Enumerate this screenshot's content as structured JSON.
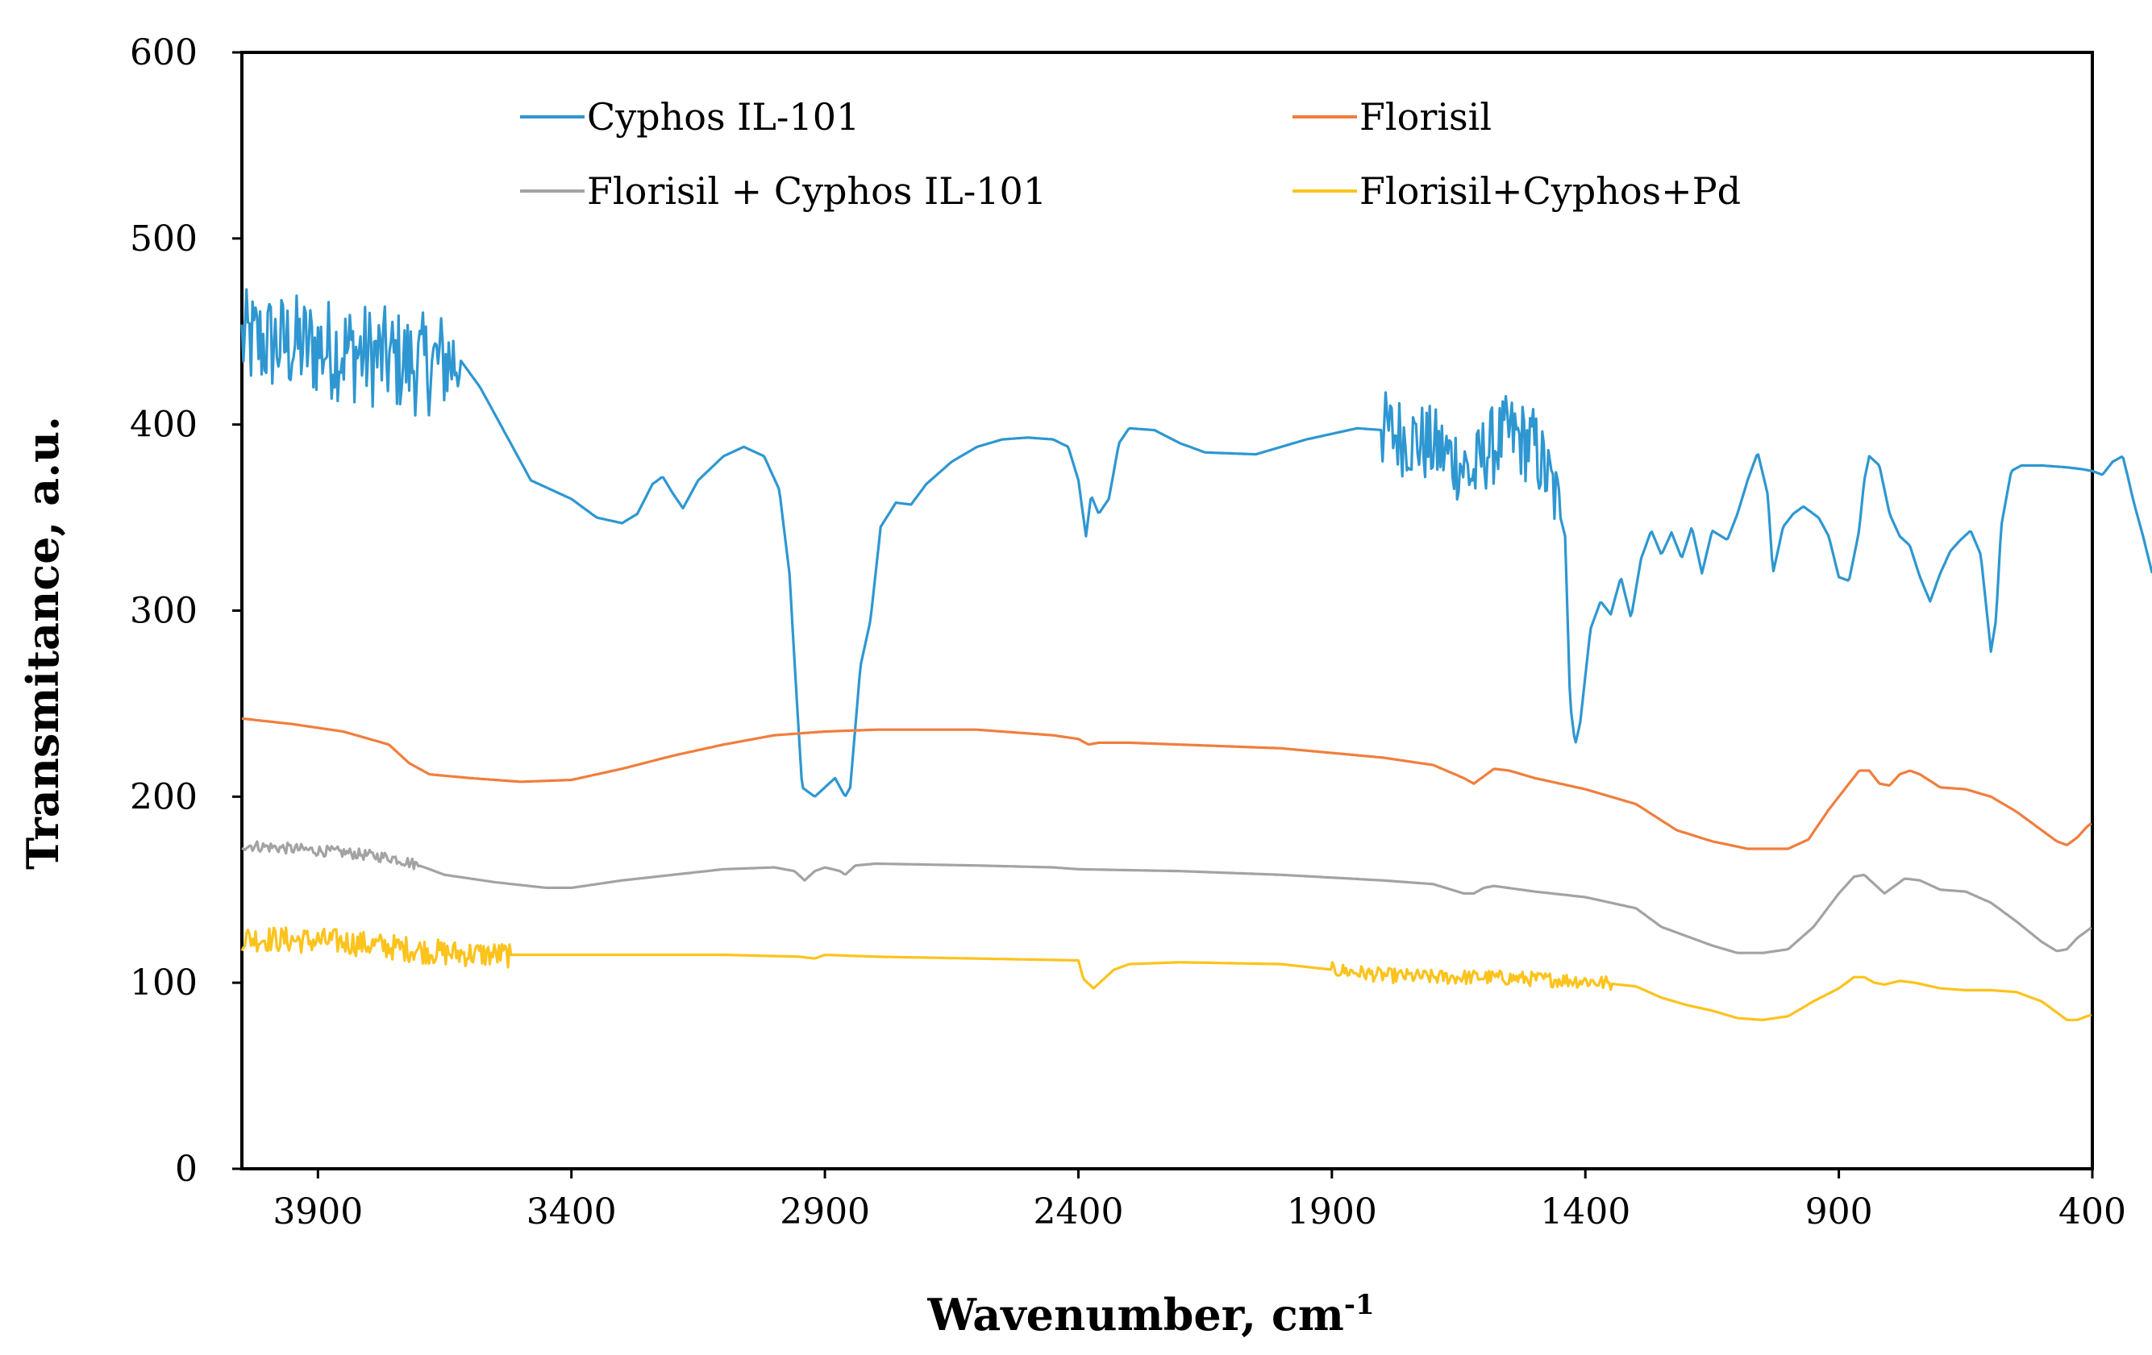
{
  "chart_data": {
    "type": "line",
    "title": "",
    "xlabel": "Wavenumber, cm",
    "xlabel_superscript": "-1",
    "ylabel": "Transmitance, a.u.",
    "xlim": [
      4050,
      400
    ],
    "ylim": [
      0,
      600
    ],
    "x_ticks": [
      3900,
      3400,
      2900,
      2400,
      1900,
      1400,
      900,
      400
    ],
    "x_tick_labels": [
      "3900",
      "3400",
      "2900",
      "2400",
      "1900",
      "1400",
      "900",
      "400"
    ],
    "y_ticks": [
      0,
      100,
      200,
      300,
      400,
      500,
      600
    ],
    "y_tick_labels": [
      "0",
      "100",
      "200",
      "300",
      "400",
      "500",
      "600"
    ],
    "grid": false,
    "legend_position": "top",
    "series": [
      {
        "name": "Cyphos IL-101",
        "color": "#2E97D1",
        "noise": [
          [
            4050,
            3620,
            28
          ],
          [
            1800,
            1450,
            22
          ]
        ],
        "points": [
          [
            4050,
            445
          ],
          [
            3950,
            443
          ],
          [
            3850,
            440
          ],
          [
            3700,
            432
          ],
          [
            3620,
            435
          ],
          [
            3580,
            420
          ],
          [
            3520,
            390
          ],
          [
            3480,
            370
          ],
          [
            3400,
            360
          ],
          [
            3350,
            350
          ],
          [
            3300,
            347
          ],
          [
            3270,
            352
          ],
          [
            3240,
            368
          ],
          [
            3220,
            372
          ],
          [
            3200,
            363
          ],
          [
            3180,
            355
          ],
          [
            3150,
            370
          ],
          [
            3100,
            383
          ],
          [
            3060,
            388
          ],
          [
            3020,
            383
          ],
          [
            2990,
            365
          ],
          [
            2970,
            320
          ],
          [
            2955,
            250
          ],
          [
            2945,
            205
          ],
          [
            2920,
            200
          ],
          [
            2900,
            205
          ],
          [
            2880,
            210
          ],
          [
            2860,
            200
          ],
          [
            2850,
            205
          ],
          [
            2830,
            270
          ],
          [
            2810,
            295
          ],
          [
            2790,
            345
          ],
          [
            2760,
            358
          ],
          [
            2730,
            357
          ],
          [
            2700,
            368
          ],
          [
            2650,
            380
          ],
          [
            2600,
            388
          ],
          [
            2550,
            392
          ],
          [
            2500,
            393
          ],
          [
            2450,
            392
          ],
          [
            2420,
            388
          ],
          [
            2400,
            370
          ],
          [
            2385,
            340
          ],
          [
            2375,
            362
          ],
          [
            2360,
            352
          ],
          [
            2340,
            360
          ],
          [
            2320,
            390
          ],
          [
            2300,
            398
          ],
          [
            2250,
            397
          ],
          [
            2200,
            390
          ],
          [
            2150,
            385
          ],
          [
            2050,
            384
          ],
          [
            1950,
            392
          ],
          [
            1900,
            395
          ],
          [
            1850,
            398
          ],
          [
            1800,
            397
          ],
          [
            1750,
            393
          ],
          [
            1700,
            388
          ],
          [
            1650,
            380
          ],
          [
            1620,
            372
          ],
          [
            1600,
            385
          ],
          [
            1550,
            395
          ],
          [
            1500,
            388
          ],
          [
            1460,
            362
          ],
          [
            1440,
            340
          ],
          [
            1430,
            250
          ],
          [
            1420,
            228
          ],
          [
            1410,
            240
          ],
          [
            1390,
            290
          ],
          [
            1370,
            305
          ],
          [
            1350,
            298
          ],
          [
            1330,
            318
          ],
          [
            1310,
            296
          ],
          [
            1290,
            328
          ],
          [
            1270,
            343
          ],
          [
            1250,
            330
          ],
          [
            1230,
            342
          ],
          [
            1210,
            328
          ],
          [
            1190,
            345
          ],
          [
            1170,
            320
          ],
          [
            1150,
            343
          ],
          [
            1120,
            338
          ],
          [
            1100,
            352
          ],
          [
            1080,
            370
          ],
          [
            1060,
            385
          ],
          [
            1040,
            362
          ],
          [
            1030,
            320
          ],
          [
            1010,
            345
          ],
          [
            990,
            352
          ],
          [
            970,
            356
          ],
          [
            940,
            350
          ],
          [
            920,
            340
          ],
          [
            900,
            318
          ],
          [
            880,
            316
          ],
          [
            860,
            343
          ],
          [
            850,
            370
          ],
          [
            840,
            383
          ],
          [
            820,
            378
          ],
          [
            800,
            352
          ],
          [
            780,
            340
          ],
          [
            760,
            335
          ],
          [
            740,
            318
          ],
          [
            720,
            305
          ],
          [
            700,
            320
          ],
          [
            680,
            332
          ],
          [
            660,
            338
          ],
          [
            640,
            343
          ],
          [
            620,
            330
          ],
          [
            600,
            278
          ],
          [
            590,
            295
          ],
          [
            580,
            345
          ],
          [
            560,
            375
          ],
          [
            540,
            378
          ],
          [
            500,
            378
          ],
          [
            450,
            377
          ],
          [
            420,
            376
          ],
          [
            400,
            375
          ],
          [
            380,
            373
          ],
          [
            360,
            380
          ],
          [
            340,
            383
          ],
          [
            330,
            372
          ],
          [
            320,
            360
          ],
          [
            300,
            340
          ],
          [
            280,
            318
          ]
        ]
      },
      {
        "name": "Florisil",
        "color": "#F07E3D",
        "noise": [],
        "points": [
          [
            4050,
            242
          ],
          [
            3950,
            239
          ],
          [
            3850,
            235
          ],
          [
            3760,
            228
          ],
          [
            3720,
            218
          ],
          [
            3680,
            212
          ],
          [
            3600,
            210
          ],
          [
            3500,
            208
          ],
          [
            3400,
            209
          ],
          [
            3300,
            215
          ],
          [
            3200,
            222
          ],
          [
            3100,
            228
          ],
          [
            3000,
            233
          ],
          [
            2900,
            235
          ],
          [
            2800,
            236
          ],
          [
            2600,
            236
          ],
          [
            2450,
            233
          ],
          [
            2400,
            231
          ],
          [
            2380,
            228
          ],
          [
            2360,
            229
          ],
          [
            2300,
            229
          ],
          [
            2200,
            228
          ],
          [
            2000,
            226
          ],
          [
            1800,
            221
          ],
          [
            1700,
            217
          ],
          [
            1640,
            210
          ],
          [
            1620,
            207
          ],
          [
            1600,
            211
          ],
          [
            1580,
            215
          ],
          [
            1550,
            214
          ],
          [
            1500,
            210
          ],
          [
            1400,
            204
          ],
          [
            1300,
            196
          ],
          [
            1220,
            182
          ],
          [
            1150,
            176
          ],
          [
            1080,
            172
          ],
          [
            1000,
            172
          ],
          [
            960,
            177
          ],
          [
            920,
            193
          ],
          [
            880,
            207
          ],
          [
            860,
            214
          ],
          [
            840,
            214
          ],
          [
            820,
            207
          ],
          [
            800,
            206
          ],
          [
            780,
            212
          ],
          [
            760,
            214
          ],
          [
            740,
            212
          ],
          [
            700,
            205
          ],
          [
            650,
            204
          ],
          [
            600,
            200
          ],
          [
            550,
            192
          ],
          [
            500,
            182
          ],
          [
            470,
            176
          ],
          [
            450,
            174
          ],
          [
            430,
            178
          ],
          [
            410,
            184
          ],
          [
            400,
            186
          ]
        ]
      },
      {
        "name": "Florisil + Cyphos IL-101",
        "color": "#A3A3A3",
        "noise": [
          [
            4050,
            3700,
            3
          ]
        ],
        "points": [
          [
            4050,
            174
          ],
          [
            3950,
            172
          ],
          [
            3850,
            170
          ],
          [
            3750,
            167
          ],
          [
            3700,
            163
          ],
          [
            3650,
            158
          ],
          [
            3550,
            154
          ],
          [
            3450,
            151
          ],
          [
            3400,
            151
          ],
          [
            3300,
            155
          ],
          [
            3200,
            158
          ],
          [
            3100,
            161
          ],
          [
            3000,
            162
          ],
          [
            2960,
            160
          ],
          [
            2940,
            155
          ],
          [
            2920,
            160
          ],
          [
            2900,
            162
          ],
          [
            2870,
            160
          ],
          [
            2860,
            158
          ],
          [
            2840,
            163
          ],
          [
            2800,
            164
          ],
          [
            2600,
            163
          ],
          [
            2450,
            162
          ],
          [
            2400,
            161
          ],
          [
            2200,
            160
          ],
          [
            2000,
            158
          ],
          [
            1800,
            155
          ],
          [
            1700,
            153
          ],
          [
            1640,
            148
          ],
          [
            1620,
            148
          ],
          [
            1600,
            151
          ],
          [
            1580,
            152
          ],
          [
            1500,
            149
          ],
          [
            1400,
            146
          ],
          [
            1300,
            140
          ],
          [
            1250,
            130
          ],
          [
            1200,
            125
          ],
          [
            1150,
            120
          ],
          [
            1100,
            116
          ],
          [
            1050,
            116
          ],
          [
            1000,
            118
          ],
          [
            950,
            130
          ],
          [
            900,
            148
          ],
          [
            870,
            157
          ],
          [
            850,
            158
          ],
          [
            830,
            153
          ],
          [
            810,
            148
          ],
          [
            790,
            152
          ],
          [
            770,
            156
          ],
          [
            740,
            155
          ],
          [
            700,
            150
          ],
          [
            650,
            149
          ],
          [
            600,
            143
          ],
          [
            550,
            133
          ],
          [
            500,
            122
          ],
          [
            470,
            117
          ],
          [
            450,
            118
          ],
          [
            430,
            124
          ],
          [
            410,
            128
          ],
          [
            400,
            130
          ]
        ]
      },
      {
        "name": "Florisil+Cyphos+Pd",
        "color": "#FCC31C",
        "noise": [
          [
            4050,
            3520,
            7
          ],
          [
            1900,
            1350,
            4
          ]
        ],
        "points": [
          [
            4050,
            124
          ],
          [
            3950,
            123
          ],
          [
            3850,
            122
          ],
          [
            3750,
            119
          ],
          [
            3650,
            116
          ],
          [
            3550,
            115
          ],
          [
            3450,
            115
          ],
          [
            3300,
            115
          ],
          [
            3100,
            115
          ],
          [
            2950,
            114
          ],
          [
            2920,
            113
          ],
          [
            2900,
            115
          ],
          [
            2800,
            114
          ],
          [
            2600,
            113
          ],
          [
            2400,
            112
          ],
          [
            2390,
            102
          ],
          [
            2370,
            97
          ],
          [
            2350,
            102
          ],
          [
            2330,
            107
          ],
          [
            2300,
            110
          ],
          [
            2200,
            111
          ],
          [
            2000,
            110
          ],
          [
            1900,
            107
          ],
          [
            1800,
            104
          ],
          [
            1700,
            103
          ],
          [
            1600,
            103
          ],
          [
            1500,
            102
          ],
          [
            1400,
            101
          ],
          [
            1300,
            98
          ],
          [
            1250,
            92
          ],
          [
            1200,
            88
          ],
          [
            1150,
            85
          ],
          [
            1100,
            81
          ],
          [
            1050,
            80
          ],
          [
            1000,
            82
          ],
          [
            950,
            90
          ],
          [
            900,
            97
          ],
          [
            870,
            103
          ],
          [
            850,
            103
          ],
          [
            830,
            100
          ],
          [
            810,
            99
          ],
          [
            780,
            101
          ],
          [
            750,
            100
          ],
          [
            700,
            97
          ],
          [
            650,
            96
          ],
          [
            600,
            96
          ],
          [
            550,
            95
          ],
          [
            500,
            90
          ],
          [
            470,
            84
          ],
          [
            450,
            80
          ],
          [
            430,
            80
          ],
          [
            410,
            82
          ],
          [
            400,
            83
          ]
        ]
      }
    ]
  }
}
